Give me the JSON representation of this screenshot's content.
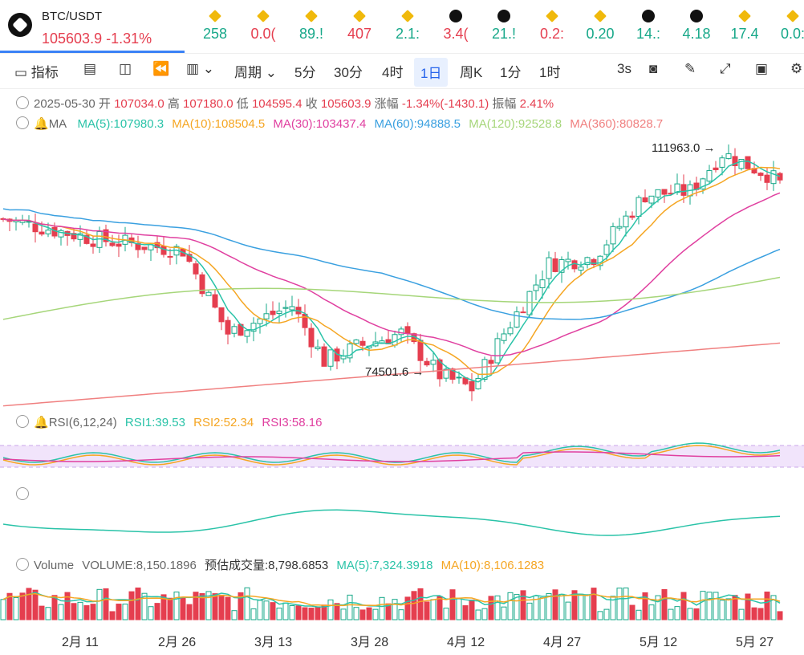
{
  "symbol": {
    "name": "BTC/USDT",
    "price": "105603.9",
    "change": "-1.31%"
  },
  "tickers": [
    "258",
    "0.0(",
    "89.!",
    "407",
    "2.1:",
    "3.4(",
    "21.!",
    "0.2:",
    "0.20",
    "14.:",
    "4.18",
    "17.4",
    "0.0:"
  ],
  "toolbar": {
    "indicators": "指标",
    "period": "周期",
    "p5m": "5分",
    "p30m": "30分",
    "p4h": "4时",
    "p1d": "1日",
    "pweek": "周K",
    "p1m": "1分",
    "p1h": "1时",
    "refresh": "3s"
  },
  "ohlc": {
    "date": "2025-05-30",
    "open_l": "开",
    "open": "107034.0",
    "high_l": "高",
    "high": "107180.0",
    "low_l": "低",
    "low": "104595.4",
    "close_l": "收",
    "close": "105603.9",
    "chg_l": "涨幅",
    "chg": "-1.34%(-1430.1)",
    "amp_l": "振幅",
    "amp": "2.41%"
  },
  "ma": {
    "label": "MA",
    "ma5": "MA(5):107980.3",
    "ma10": "MA(10):108504.5",
    "ma30": "MA(30):103437.4",
    "ma60": "MA(60):94888.5",
    "ma120": "MA(120):92528.8",
    "ma360": "MA(360):80828.7"
  },
  "rsi": {
    "label": "RSI(6,12,24)",
    "r1": "RSI1:39.53",
    "r2": "RSI2:52.34",
    "r3": "RSI3:58.16"
  },
  "volume": {
    "label": "Volume",
    "vol": "VOLUME:8,150.1896",
    "est": "预估成交量:8,798.6853",
    "ma5": "MA(5):7,324.3918",
    "ma10": "MA(10):8,106.1283"
  },
  "chart_data": {
    "type": "candlestick",
    "title": "BTC/USDT 1日",
    "annotations": {
      "high": "111963.0",
      "low": "74501.6"
    },
    "x_ticks": [
      "2月 11",
      "2月 26",
      "3月 13",
      "3月 28",
      "4月 12",
      "4月 27",
      "5月 12",
      "5月 27"
    ],
    "price_range": [
      73000,
      113000
    ]
  },
  "colors": {
    "up": "#17a889",
    "down": "#e53e4f",
    "ma5": "#2ac3a8",
    "ma10": "#f5a623",
    "ma30": "#e040a0",
    "ma60": "#3aa0e0",
    "ma120": "#a6d67a",
    "ma360": "#f08080",
    "accent": "#2563eb"
  }
}
